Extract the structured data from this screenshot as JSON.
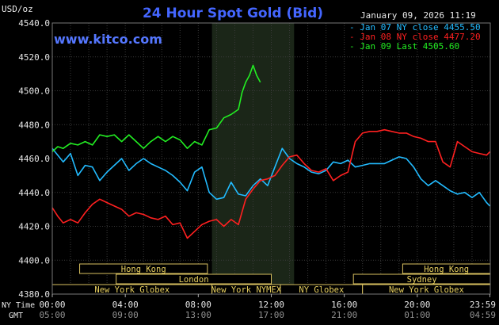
{
  "header": {
    "title": "24 Hour Spot Gold (Bid)",
    "unit_label": "USD/oz",
    "timestamp": "January 09, 2026 11:19",
    "source": "www.kitco.com"
  },
  "legend": [
    {
      "label": "Jan 07 NY close",
      "value": "4455.50",
      "color": "#22bbff"
    },
    {
      "label": "Jan 08 NY close",
      "value": "4477.20",
      "color": "#ff2020"
    },
    {
      "label": "Jan 09 Last",
      "value": "4505.60",
      "color": "#22ee22"
    }
  ],
  "markets_row1": [
    {
      "label": "Hong Kong",
      "start": 1.5,
      "end": 8.5
    },
    {
      "label": "Hong Kong",
      "start": 19.2,
      "end": 24.0
    }
  ],
  "markets_row2": [
    {
      "label": "London",
      "start": 3.5,
      "end": 12.0
    },
    {
      "label": "Sydney",
      "start": 16.5,
      "end": 24.0
    }
  ],
  "markets_row3": [
    {
      "label": "New York Globex",
      "start": 0.0,
      "end": 8.75
    },
    {
      "label": "New York NYMEX",
      "start": 8.75,
      "end": 12.5
    },
    {
      "label": "NY Globex",
      "start": 12.5,
      "end": 17.0
    },
    {
      "label": "New York Globex",
      "start": 17.0,
      "end": 24.0
    }
  ],
  "axis": {
    "ny_time_label": "NY Time",
    "gmt_label": "GMT",
    "ny_ticks": [
      "00:00",
      "04:00",
      "08:00",
      "12:00",
      "16:00",
      "20:00",
      "23:59"
    ],
    "gmt_ticks": [
      "05:00",
      "09:00",
      "13:00",
      "17:00",
      "21:00",
      "01:00",
      "04:59"
    ]
  },
  "chart_data": {
    "type": "line",
    "title": "24 Hour Spot Gold (Bid)",
    "ylabel": "USD/oz",
    "xlabel": "NY Time",
    "xlim": [
      0,
      24
    ],
    "ylim": [
      4380,
      4540
    ],
    "yticks": [
      4380.0,
      4400.0,
      4420.0,
      4440.0,
      4460.0,
      4480.0,
      4500.0,
      4520.0,
      4540.0
    ],
    "xticks": [
      0,
      4,
      8,
      12,
      16,
      20,
      23.98
    ],
    "highlight_range": [
      8.75,
      13.25
    ],
    "series": [
      {
        "name": "Jan 07",
        "color": "#22bbff",
        "x": [
          0,
          0.3,
          0.6,
          1.0,
          1.4,
          1.8,
          2.2,
          2.6,
          3.0,
          3.4,
          3.8,
          4.2,
          4.6,
          5.0,
          5.4,
          5.8,
          6.2,
          6.6,
          7.0,
          7.4,
          7.8,
          8.2,
          8.6,
          9.0,
          9.4,
          9.8,
          10.2,
          10.6,
          11.0,
          11.4,
          11.8,
          12.2,
          12.6,
          13.0,
          13.4,
          13.8,
          14.2,
          14.6,
          15.0,
          15.4,
          15.8,
          16.2,
          16.6,
          17.0,
          17.4,
          17.8,
          18.2,
          18.6,
          19.0,
          19.4,
          19.8,
          20.2,
          20.6,
          21.0,
          21.4,
          21.8,
          22.2,
          22.6,
          23.0,
          23.4,
          23.8,
          23.98
        ],
        "values": [
          4466,
          4462,
          4458,
          4463,
          4450,
          4456,
          4455,
          4447,
          4452,
          4456,
          4460,
          4453,
          4457,
          4460,
          4457,
          4455,
          4453,
          4450,
          4446,
          4441,
          4452,
          4455,
          4440,
          4436,
          4437,
          4446,
          4439,
          4438,
          4444,
          4448,
          4444,
          4455,
          4466,
          4460,
          4457,
          4455,
          4452,
          4451,
          4453,
          4458,
          4457,
          4459,
          4455,
          4456,
          4457,
          4457,
          4457,
          4459,
          4461,
          4460,
          4455,
          4448,
          4444,
          4447,
          4444,
          4441,
          4439,
          4440,
          4437,
          4440,
          4434,
          4432
        ]
      },
      {
        "name": "Jan 08",
        "color": "#ff2020",
        "x": [
          0,
          0.3,
          0.6,
          1.0,
          1.4,
          1.8,
          2.2,
          2.6,
          3.0,
          3.4,
          3.8,
          4.2,
          4.6,
          5.0,
          5.4,
          5.8,
          6.2,
          6.6,
          7.0,
          7.4,
          7.8,
          8.2,
          8.6,
          9.0,
          9.4,
          9.8,
          10.2,
          10.6,
          11.0,
          11.4,
          11.8,
          12.2,
          12.6,
          13.0,
          13.4,
          13.8,
          14.2,
          14.6,
          15.0,
          15.4,
          15.8,
          16.2,
          16.6,
          17.0,
          17.4,
          17.8,
          18.2,
          18.6,
          19.0,
          19.4,
          19.8,
          20.2,
          20.6,
          21.0,
          21.4,
          21.8,
          22.2,
          22.6,
          23.0,
          23.4,
          23.8,
          23.98
        ],
        "values": [
          4431,
          4426,
          4422,
          4424,
          4422,
          4428,
          4433,
          4436,
          4434,
          4432,
          4430,
          4426,
          4428,
          4427,
          4425,
          4424,
          4426,
          4421,
          4422,
          4413,
          4417,
          4421,
          4423,
          4424,
          4420,
          4424,
          4421,
          4436,
          4442,
          4447,
          4448,
          4450,
          4456,
          4461,
          4462,
          4457,
          4453,
          4452,
          4454,
          4447,
          4450,
          4452,
          4470,
          4475,
          4476,
          4476,
          4477,
          4476,
          4475,
          4475,
          4473,
          4472,
          4470,
          4470,
          4458,
          4455,
          4470,
          4467,
          4464,
          4463,
          4462,
          4464
        ]
      },
      {
        "name": "Jan 09",
        "color": "#22ee22",
        "x": [
          0,
          0.3,
          0.6,
          1.0,
          1.4,
          1.8,
          2.2,
          2.6,
          3.0,
          3.4,
          3.8,
          4.2,
          4.6,
          5.0,
          5.4,
          5.8,
          6.2,
          6.6,
          7.0,
          7.4,
          7.8,
          8.2,
          8.6,
          9.0,
          9.4,
          9.8,
          10.2,
          10.4,
          10.6,
          10.8,
          11.0,
          11.2,
          11.4
        ],
        "values": [
          4464,
          4467,
          4466,
          4469,
          4468,
          4470,
          4468,
          4474,
          4473,
          4474,
          4470,
          4474,
          4470,
          4466,
          4470,
          4473,
          4470,
          4473,
          4471,
          4466,
          4470,
          4468,
          4477,
          4478,
          4484,
          4486,
          4489,
          4499,
          4505,
          4509,
          4515,
          4509,
          4505
        ]
      }
    ]
  }
}
